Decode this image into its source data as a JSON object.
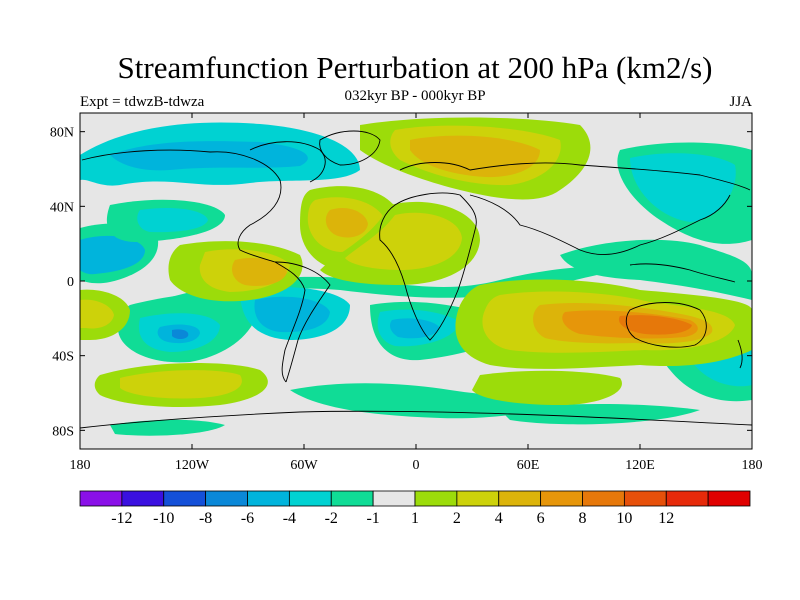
{
  "header": {
    "title": "Streamfunction Perturbation at 200 hPa (km2/s)",
    "left_label": "Expt = tdwzB-tdwza",
    "center_label": "032kyr BP - 000kyr BP",
    "right_label": "JJA"
  },
  "map": {
    "projection": "cylindrical equidistant",
    "background_color": "#e6e6e6",
    "lat_ticks": [
      "80N",
      "40N",
      "0",
      "40S",
      "80S"
    ],
    "lon_ticks": [
      "180",
      "120W",
      "60W",
      "0",
      "60E",
      "120E",
      "180"
    ]
  },
  "colorbar": {
    "colors": [
      "#8a10e8",
      "#3a10e0",
      "#1450d8",
      "#0a88d8",
      "#00b4dc",
      "#00d2d2",
      "#10dc96",
      "#e6e6e6",
      "#9cdc0a",
      "#cdd20a",
      "#dcb40a",
      "#e6960a",
      "#e6780a",
      "#e6500a",
      "#e62a0a",
      "#e00000"
    ],
    "labels": [
      "-12",
      "-10",
      "-8",
      "-6",
      "-4",
      "-2",
      "-1",
      "1",
      "2",
      "4",
      "6",
      "8",
      "10",
      "12"
    ]
  }
}
